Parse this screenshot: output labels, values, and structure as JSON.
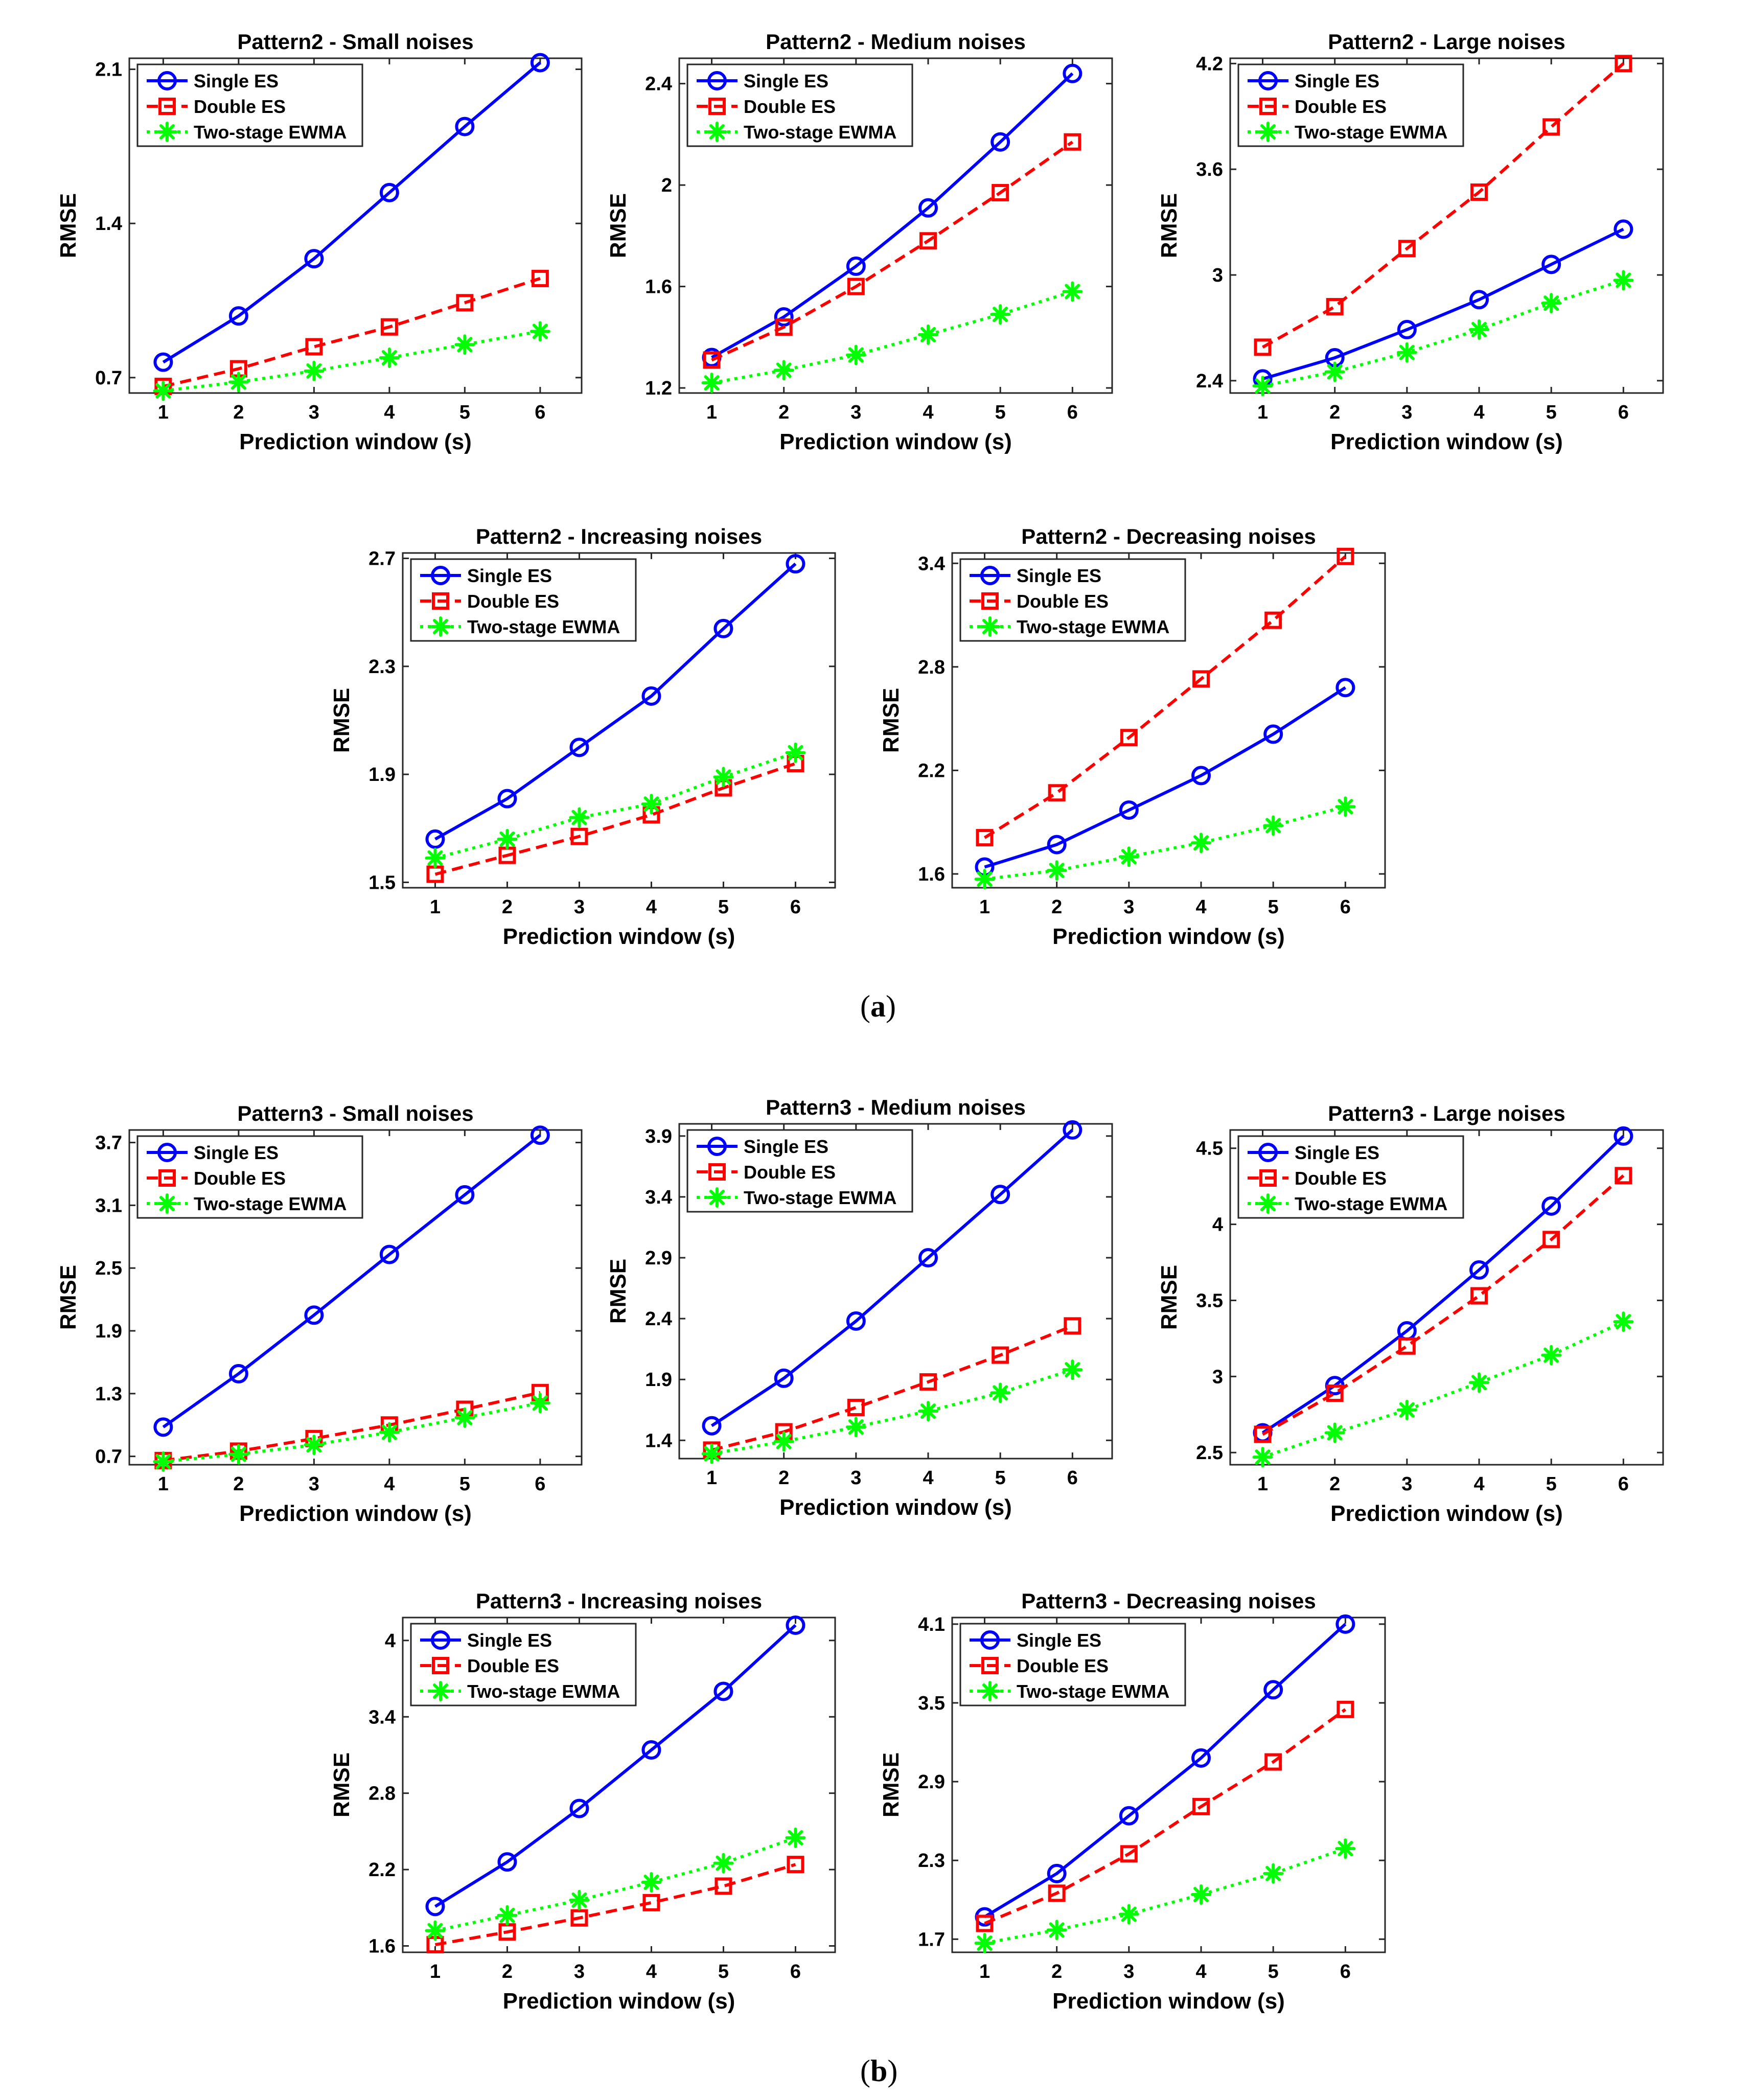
{
  "colors": {
    "single": "#0000FF",
    "double": "#FF0000",
    "ewma": "#00FF00",
    "axis": "#262626"
  },
  "panel_labels": {
    "a": "a",
    "b": "b"
  },
  "chart_data": [
    {
      "type": "line",
      "title": "Pattern2 - Small noises",
      "xlabel": "Prediction window (s)",
      "ylabel": "RMSE",
      "x": [
        1,
        2,
        3,
        4,
        5,
        6
      ],
      "xlim": [
        0.55,
        6.55
      ],
      "ylim": [
        0.63,
        2.15
      ],
      "yticks": [
        0.7,
        1.4,
        2.1
      ],
      "ytick_labels": [
        "0.7",
        "1.4",
        "2.1"
      ],
      "legend": "top-left",
      "series": [
        {
          "name": "Single ES",
          "values": [
            0.77,
            0.98,
            1.24,
            1.54,
            1.84,
            2.13
          ]
        },
        {
          "name": "Double ES",
          "values": [
            0.66,
            0.74,
            0.84,
            0.93,
            1.04,
            1.15
          ]
        },
        {
          "name": "Two-stage EWMA",
          "values": [
            0.64,
            0.68,
            0.73,
            0.79,
            0.85,
            0.91
          ]
        }
      ]
    },
    {
      "type": "line",
      "title": "Pattern2 - Medium noises",
      "xlabel": "Prediction window (s)",
      "ylabel": "RMSE",
      "x": [
        1,
        2,
        3,
        4,
        5,
        6
      ],
      "xlim": [
        0.55,
        6.55
      ],
      "ylim": [
        1.18,
        2.5
      ],
      "yticks": [
        1.2,
        1.6,
        2,
        2.4
      ],
      "ytick_labels": [
        "1.2",
        "1.6",
        "2",
        "2.4"
      ],
      "legend": "top-left",
      "series": [
        {
          "name": "Single ES",
          "values": [
            1.32,
            1.48,
            1.68,
            1.91,
            2.17,
            2.44
          ]
        },
        {
          "name": "Double ES",
          "values": [
            1.31,
            1.44,
            1.6,
            1.78,
            1.97,
            2.17
          ]
        },
        {
          "name": "Two-stage EWMA",
          "values": [
            1.22,
            1.27,
            1.33,
            1.41,
            1.49,
            1.58
          ]
        }
      ]
    },
    {
      "type": "line",
      "title": "Pattern2 - Large noises",
      "xlabel": "Prediction window (s)",
      "ylabel": "RMSE",
      "x": [
        1,
        2,
        3,
        4,
        5,
        6
      ],
      "xlim": [
        0.55,
        6.55
      ],
      "ylim": [
        2.33,
        4.23
      ],
      "yticks": [
        2.4,
        3,
        3.6,
        4.2
      ],
      "ytick_labels": [
        "2.4",
        "3",
        "3.6",
        "4.2"
      ],
      "legend": "top-left",
      "series": [
        {
          "name": "Single ES",
          "values": [
            2.41,
            2.53,
            2.69,
            2.86,
            3.06,
            3.26
          ]
        },
        {
          "name": "Double ES",
          "values": [
            2.59,
            2.82,
            3.15,
            3.47,
            3.84,
            4.2
          ]
        },
        {
          "name": "Two-stage EWMA",
          "values": [
            2.37,
            2.45,
            2.56,
            2.69,
            2.84,
            2.97
          ]
        }
      ]
    },
    {
      "type": "line",
      "title": "Pattern2 - Increasing noises",
      "xlabel": "Prediction window (s)",
      "ylabel": "RMSE",
      "x": [
        1,
        2,
        3,
        4,
        5,
        6
      ],
      "xlim": [
        0.55,
        6.55
      ],
      "ylim": [
        1.48,
        2.72
      ],
      "yticks": [
        1.5,
        1.9,
        2.3,
        2.7
      ],
      "ytick_labels": [
        "1.5",
        "1.9",
        "2.3",
        "2.7"
      ],
      "legend": "top-left",
      "series": [
        {
          "name": "Single ES",
          "values": [
            1.66,
            1.81,
            2.0,
            2.19,
            2.44,
            2.68
          ]
        },
        {
          "name": "Double ES",
          "values": [
            1.53,
            1.6,
            1.67,
            1.75,
            1.85,
            1.94
          ]
        },
        {
          "name": "Two-stage EWMA",
          "values": [
            1.59,
            1.66,
            1.74,
            1.79,
            1.89,
            1.98
          ]
        }
      ]
    },
    {
      "type": "line",
      "title": "Pattern2 - Decreasing noises",
      "xlabel": "Prediction window (s)",
      "ylabel": "RMSE",
      "x": [
        1,
        2,
        3,
        4,
        5,
        6
      ],
      "xlim": [
        0.55,
        6.55
      ],
      "ylim": [
        1.52,
        3.46
      ],
      "yticks": [
        1.6,
        2.2,
        2.8,
        3.4
      ],
      "ytick_labels": [
        "1.6",
        "2.2",
        "2.8",
        "3.4"
      ],
      "legend": "top-left",
      "series": [
        {
          "name": "Single ES",
          "values": [
            1.64,
            1.77,
            1.97,
            2.17,
            2.41,
            2.68
          ]
        },
        {
          "name": "Double ES",
          "values": [
            1.81,
            2.07,
            2.39,
            2.73,
            3.07,
            3.44
          ]
        },
        {
          "name": "Two-stage EWMA",
          "values": [
            1.57,
            1.62,
            1.7,
            1.78,
            1.88,
            1.99
          ]
        }
      ]
    },
    {
      "type": "line",
      "title": "Pattern3 - Small noises",
      "xlabel": "Prediction window (s)",
      "ylabel": "RMSE",
      "x": [
        1,
        2,
        3,
        4,
        5,
        6
      ],
      "xlim": [
        0.55,
        6.55
      ],
      "ylim": [
        0.62,
        3.82
      ],
      "yticks": [
        0.7,
        1.3,
        1.9,
        2.5,
        3.1,
        3.7
      ],
      "ytick_labels": [
        "0.7",
        "1.3",
        "1.9",
        "2.5",
        "3.1",
        "3.7"
      ],
      "legend": "top-left",
      "series": [
        {
          "name": "Single ES",
          "values": [
            0.98,
            1.49,
            2.05,
            2.63,
            3.2,
            3.77
          ]
        },
        {
          "name": "Double ES",
          "values": [
            0.66,
            0.75,
            0.87,
            1.0,
            1.15,
            1.31
          ]
        },
        {
          "name": "Two-stage EWMA",
          "values": [
            0.65,
            0.72,
            0.81,
            0.93,
            1.07,
            1.21
          ]
        }
      ]
    },
    {
      "type": "line",
      "title": "Pattern3 - Medium noises",
      "xlabel": "Prediction window (s)",
      "ylabel": "RMSE",
      "x": [
        1,
        2,
        3,
        4,
        5,
        6
      ],
      "xlim": [
        0.55,
        6.55
      ],
      "ylim": [
        1.25,
        4.0
      ],
      "yticks": [
        1.4,
        1.9,
        2.4,
        2.9,
        3.4,
        3.9
      ],
      "ytick_labels": [
        "1.4",
        "1.9",
        "2.4",
        "2.9",
        "3.4",
        "3.9"
      ],
      "legend": "top-left",
      "series": [
        {
          "name": "Single ES",
          "values": [
            1.52,
            1.91,
            2.38,
            2.9,
            3.42,
            3.95
          ]
        },
        {
          "name": "Double ES",
          "values": [
            1.32,
            1.47,
            1.67,
            1.88,
            2.1,
            2.34
          ]
        },
        {
          "name": "Two-stage EWMA",
          "values": [
            1.29,
            1.39,
            1.51,
            1.64,
            1.79,
            1.98
          ]
        }
      ]
    },
    {
      "type": "line",
      "title": "Pattern3 - Large noises",
      "xlabel": "Prediction window (s)",
      "ylabel": "RMSE",
      "x": [
        1,
        2,
        3,
        4,
        5,
        6
      ],
      "xlim": [
        0.55,
        6.55
      ],
      "ylim": [
        2.42,
        4.62
      ],
      "yticks": [
        2.5,
        3,
        3.5,
        4,
        4.5
      ],
      "ytick_labels": [
        "2.5",
        "3",
        "3.5",
        "4",
        "4.5"
      ],
      "legend": "top-left",
      "series": [
        {
          "name": "Single ES",
          "values": [
            2.63,
            2.94,
            3.3,
            3.7,
            4.12,
            4.58
          ]
        },
        {
          "name": "Double ES",
          "values": [
            2.62,
            2.89,
            3.2,
            3.53,
            3.9,
            4.32
          ]
        },
        {
          "name": "Two-stage EWMA",
          "values": [
            2.47,
            2.63,
            2.78,
            2.96,
            3.14,
            3.36
          ]
        }
      ]
    },
    {
      "type": "line",
      "title": "Pattern3 - Increasing noises",
      "xlabel": "Prediction window (s)",
      "ylabel": "RMSE",
      "x": [
        1,
        2,
        3,
        4,
        5,
        6
      ],
      "xlim": [
        0.55,
        6.55
      ],
      "ylim": [
        1.55,
        4.18
      ],
      "yticks": [
        1.6,
        2.2,
        2.8,
        3.4,
        4
      ],
      "ytick_labels": [
        "1.6",
        "2.2",
        "2.8",
        "3.4",
        "4"
      ],
      "legend": "top-left",
      "series": [
        {
          "name": "Single ES",
          "values": [
            1.91,
            2.26,
            2.68,
            3.14,
            3.6,
            4.12
          ]
        },
        {
          "name": "Double ES",
          "values": [
            1.61,
            1.71,
            1.82,
            1.94,
            2.07,
            2.24
          ]
        },
        {
          "name": "Two-stage EWMA",
          "values": [
            1.72,
            1.84,
            1.96,
            2.1,
            2.25,
            2.45
          ]
        }
      ]
    },
    {
      "type": "line",
      "title": "Pattern3 - Decreasing noises",
      "xlabel": "Prediction window (s)",
      "ylabel": "RMSE",
      "x": [
        1,
        2,
        3,
        4,
        5,
        6
      ],
      "xlim": [
        0.55,
        6.55
      ],
      "ylim": [
        1.6,
        4.15
      ],
      "yticks": [
        1.7,
        2.3,
        2.9,
        3.5,
        4.1
      ],
      "ytick_labels": [
        "1.7",
        "2.3",
        "2.9",
        "3.5",
        "4.1"
      ],
      "legend": "top-left",
      "series": [
        {
          "name": "Single ES",
          "values": [
            1.87,
            2.2,
            2.64,
            3.08,
            3.6,
            4.1
          ]
        },
        {
          "name": "Double ES",
          "values": [
            1.82,
            2.05,
            2.35,
            2.71,
            3.05,
            3.45
          ]
        },
        {
          "name": "Two-stage EWMA",
          "values": [
            1.67,
            1.77,
            1.89,
            2.04,
            2.2,
            2.39
          ]
        }
      ]
    }
  ]
}
